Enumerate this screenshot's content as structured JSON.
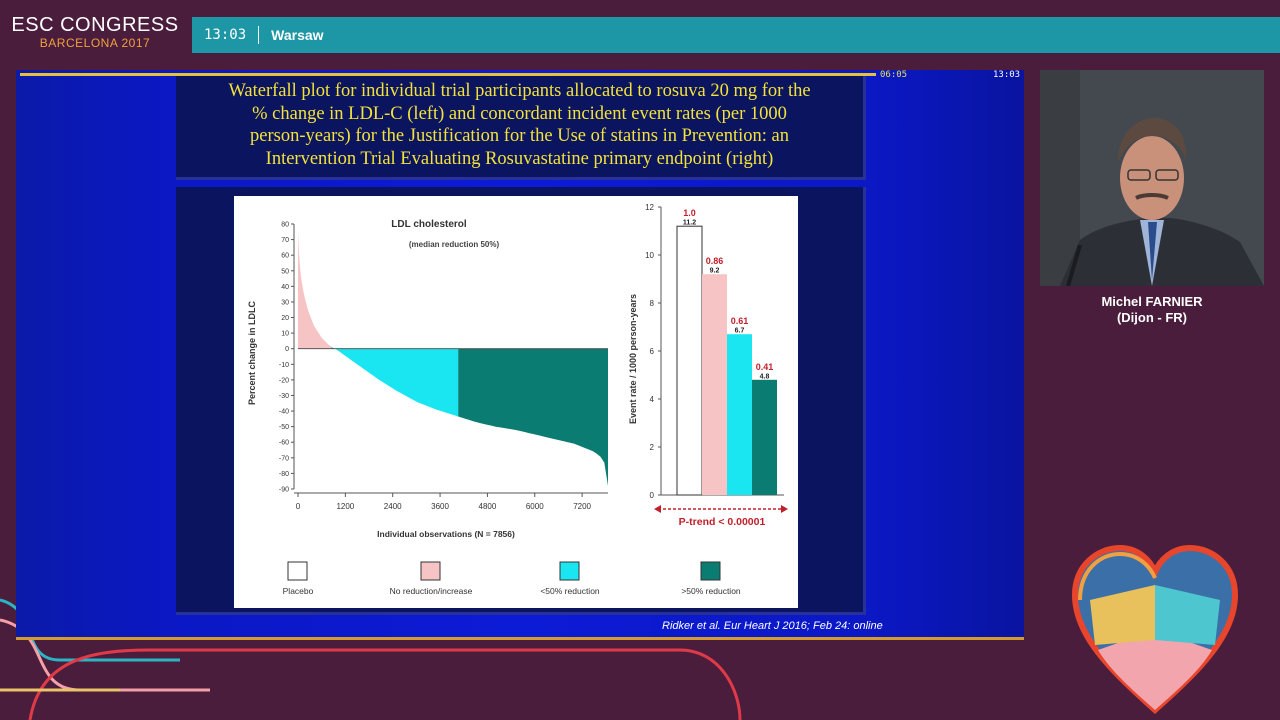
{
  "header": {
    "logo_title": "ESC CONGRESS",
    "logo_subtitle": "BARCELONA 2017",
    "time": "13:03",
    "room": "Warsaw"
  },
  "slide_status": {
    "elapsed": "06:05",
    "clock": "13:03"
  },
  "slide": {
    "title_lines": [
      "Waterfall plot for individual trial participants allocated to  rosuva 20 mg for the",
      "% change in LDL-C (left) and concordant incident event rates (per 1000",
      "person-years) for the Justification for the Use of statins in Prevention: an",
      "Intervention Trial Evaluating Rosuvastatine primary endpoint (right)"
    ],
    "citation": "Ridker et al. Eur Heart J 2016; Feb 24: online"
  },
  "speaker": {
    "name": "Michel FARNIER",
    "affiliation": "(Dijon - FR)"
  },
  "colors": {
    "placebo": "#ffffff",
    "no_reduction": "#f7c4c6",
    "lt50": "#19e6f0",
    "gt50": "#0b7c72",
    "risk_ratio": "#c0202a"
  },
  "chart_data": [
    {
      "type": "area",
      "title": "LDL cholesterol",
      "subtitle": "(median reduction 50%)",
      "xlabel": "Individual observations (N = 7856)",
      "ylabel": "Percent change in LDLC",
      "xlim": [
        0,
        7856
      ],
      "ylim": [
        -90,
        80
      ],
      "x_ticks": [
        0,
        1200,
        2400,
        3600,
        4800,
        6000,
        7200
      ],
      "y_ticks": [
        80,
        70,
        60,
        50,
        40,
        30,
        20,
        10,
        0,
        -10,
        -20,
        -30,
        -40,
        -50,
        -60,
        -70,
        -80,
        -90
      ],
      "curve": {
        "x": [
          0,
          30,
          80,
          150,
          250,
          400,
          600,
          800,
          1000,
          1500,
          2000,
          2500,
          3000,
          3500,
          4000,
          4500,
          5000,
          5500,
          6000,
          6500,
          7000,
          7500,
          7700,
          7820,
          7856
        ],
        "y": [
          75,
          58,
          45,
          35,
          25,
          15,
          7,
          2,
          -1,
          -10,
          -19,
          -27,
          -34,
          -39,
          -43,
          -47,
          -50,
          -52,
          -55,
          -58,
          -61,
          -66,
          -70,
          -76,
          -88
        ]
      },
      "segments": [
        {
          "name": "No reduction/increase",
          "x_from": 0,
          "x_to": 850
        },
        {
          "name": "<50% reduction",
          "x_from": 850,
          "x_to": 4060
        },
        {
          "name": ">50% reduction",
          "x_from": 4060,
          "x_to": 7856
        }
      ],
      "legend": [
        "Placebo",
        "No reduction/increase",
        "<50% reduction",
        ">50% reduction"
      ]
    },
    {
      "type": "bar",
      "ylabel": "Event rate / 1000 person-years",
      "ylim": [
        0,
        12
      ],
      "y_ticks": [
        0,
        2,
        4,
        6,
        8,
        10,
        12
      ],
      "categories": [
        "Placebo",
        "No reduction/increase",
        "<50% reduction",
        ">50% reduction"
      ],
      "values": [
        11.2,
        9.2,
        6.7,
        4.8
      ],
      "value_labels": [
        "11.2",
        "9.2",
        "6.7",
        "4.8"
      ],
      "ratio_labels": [
        "1.0",
        "0.86",
        "0.61",
        "0.41"
      ],
      "annotation": "P-trend < 0.00001"
    }
  ]
}
